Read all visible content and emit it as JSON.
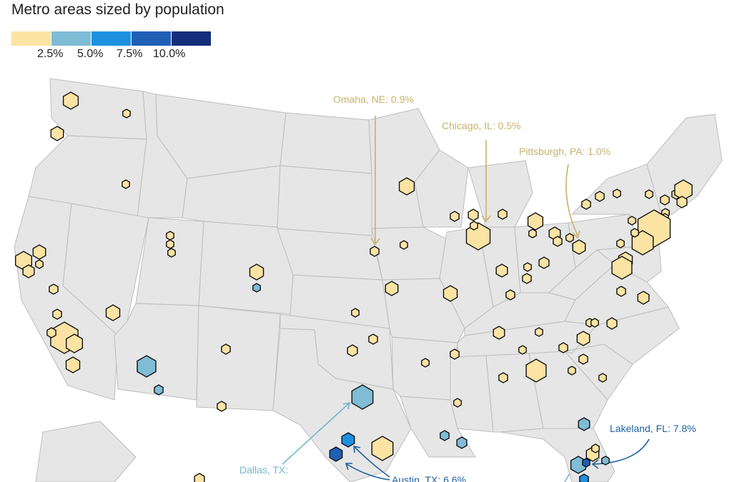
{
  "title": "Metro areas sized by population",
  "legend": {
    "colors": [
      "#fbe3a3",
      "#7fbcd6",
      "#1e90e0",
      "#1f5fb4",
      "#152e7a"
    ],
    "labels": [
      "2.5%",
      "5.0%",
      "7.5%",
      "10.0%"
    ]
  },
  "colors": {
    "land": "#e6e6e6",
    "state_border": "#bdbdbd",
    "yellow_callout": "#c9b26a",
    "blue_callout": "#1f5f9e",
    "teal_callout": "#6fb8cf"
  },
  "callouts": [
    {
      "label": "Omaha, NE: 0.9%"
    },
    {
      "label": "Chicago, IL: 0.5%"
    },
    {
      "label": "Pittsburgh, PA: 1.0%"
    },
    {
      "label": "Lakeland, FL: 7.8%"
    },
    {
      "label": "Dallas, TX:"
    },
    {
      "label": "Austin, TX: 6.6%"
    }
  ]
}
